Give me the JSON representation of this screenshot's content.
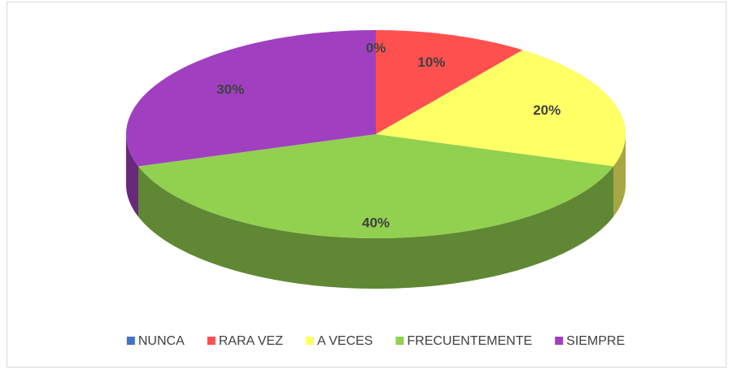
{
  "chart_data": {
    "type": "pie3d",
    "categories": [
      "NUNCA",
      "RARA VEZ",
      "A VECES",
      "FRECUENTEMENTE",
      "SIEMPRE"
    ],
    "values": [
      0,
      10,
      20,
      40,
      30
    ],
    "value_labels": [
      "0%",
      "10%",
      "20%",
      "40%",
      "30%"
    ],
    "colors": [
      "#4472c4",
      "#ff5050",
      "#ffff66",
      "#92d050",
      "#a040c0"
    ],
    "legend": "bottom"
  }
}
